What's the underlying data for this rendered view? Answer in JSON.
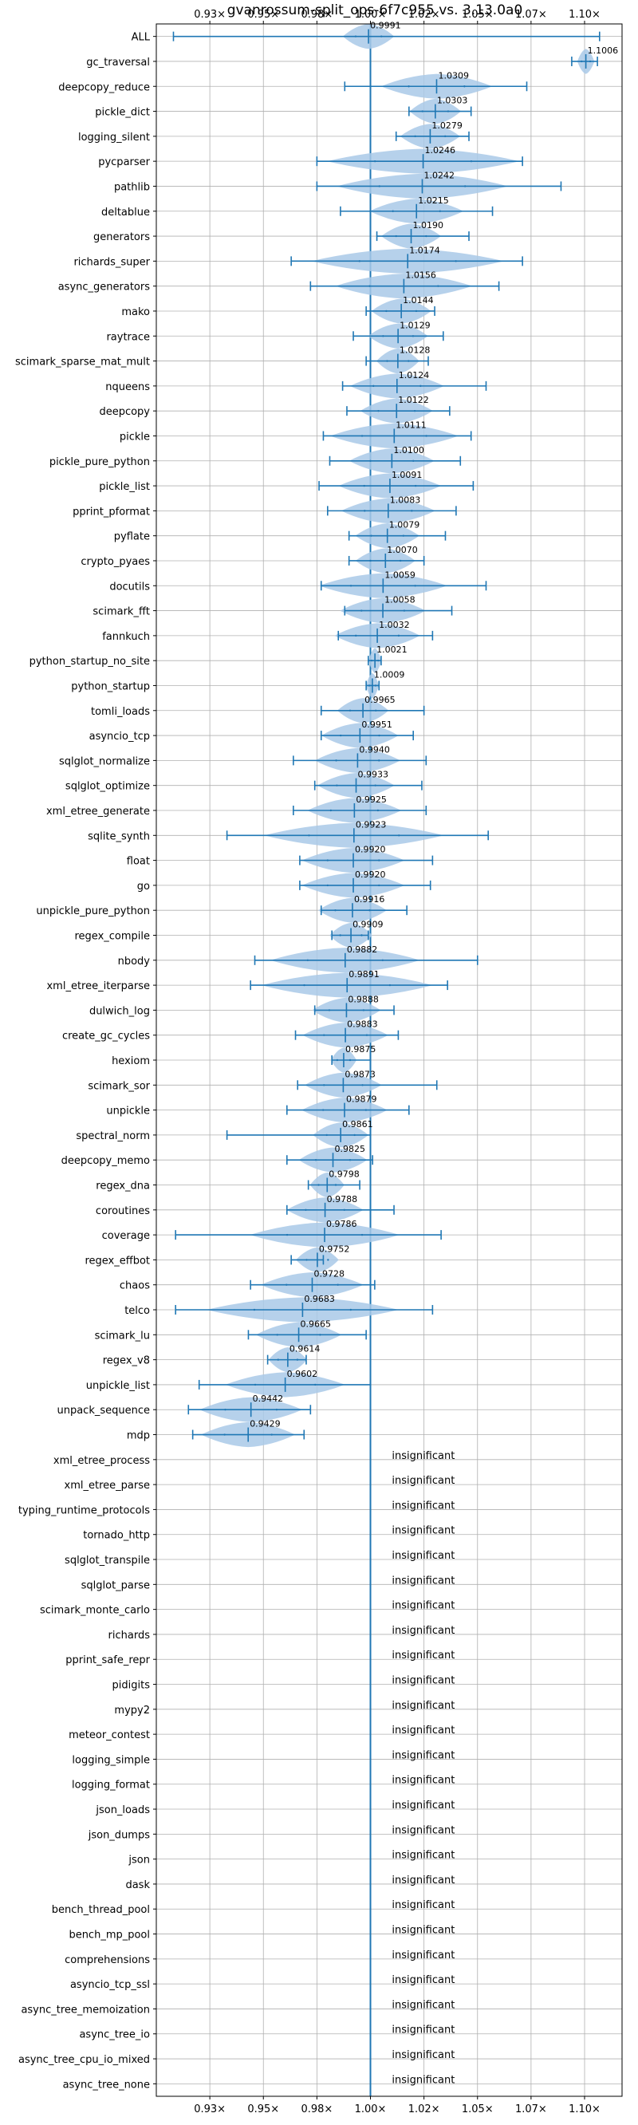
{
  "chart_data": {
    "type": "violin",
    "title": "gvanrossum-split_ops-6f7c955 vs. 3.13.0a0",
    "xlabel": "",
    "ylabel": "",
    "x_tick_values": [
      0.925,
      0.95,
      0.975,
      1.0,
      1.025,
      1.05,
      1.075,
      1.1
    ],
    "x_tick_labels": [
      "0.93×",
      "0.95×",
      "0.98×",
      "1.00×",
      "1.02×",
      "1.05×",
      "1.07×",
      "1.10×"
    ],
    "xlim": [
      0.9,
      1.1175
    ],
    "grid": true,
    "reference_line": 1.0,
    "insignificant_label": "insignificant",
    "colors": {
      "violin": "#a9c9e8",
      "line": "#1f77b4",
      "grid": "#b0b0b0",
      "axis": "#000000",
      "text": "#000000"
    },
    "benchmarks": [
      {
        "name": "ALL",
        "mean": 0.9991,
        "lo": 0.908,
        "hi": 1.107,
        "width": 0.012,
        "label": "0.9991"
      },
      {
        "name": "gc_traversal",
        "mean": 1.1006,
        "lo": 1.094,
        "hi": 1.106,
        "width": 0.004,
        "label": "1.1006"
      },
      {
        "name": "deepcopy_reduce",
        "mean": 1.0309,
        "lo": 0.988,
        "hi": 1.073,
        "width": 0.026,
        "label": "1.0309"
      },
      {
        "name": "pickle_dict",
        "mean": 1.0303,
        "lo": 1.018,
        "hi": 1.047,
        "width": 0.012,
        "label": "1.0303"
      },
      {
        "name": "logging_silent",
        "mean": 1.0279,
        "lo": 1.012,
        "hi": 1.046,
        "width": 0.014,
        "label": "1.0279"
      },
      {
        "name": "pycparser",
        "mean": 1.0246,
        "lo": 0.975,
        "hi": 1.071,
        "width": 0.045,
        "label": "1.0246"
      },
      {
        "name": "pathlib",
        "mean": 1.0242,
        "lo": 0.975,
        "hi": 1.089,
        "width": 0.04,
        "label": "1.0242"
      },
      {
        "name": "deltablue",
        "mean": 1.0215,
        "lo": 0.986,
        "hi": 1.057,
        "width": 0.022,
        "label": "1.0215"
      },
      {
        "name": "generators",
        "mean": 1.019,
        "lo": 1.003,
        "hi": 1.046,
        "width": 0.014,
        "label": "1.0190"
      },
      {
        "name": "richards_super",
        "mean": 1.0174,
        "lo": 0.963,
        "hi": 1.071,
        "width": 0.045,
        "label": "1.0174"
      },
      {
        "name": "async_generators",
        "mean": 1.0156,
        "lo": 0.972,
        "hi": 1.06,
        "width": 0.032,
        "label": "1.0156"
      },
      {
        "name": "mako",
        "mean": 1.0144,
        "lo": 0.998,
        "hi": 1.03,
        "width": 0.014,
        "label": "1.0144"
      },
      {
        "name": "raytrace",
        "mean": 1.0129,
        "lo": 0.992,
        "hi": 1.034,
        "width": 0.014,
        "label": "1.0129"
      },
      {
        "name": "scimark_sparse_mat_mult",
        "mean": 1.0128,
        "lo": 0.998,
        "hi": 1.027,
        "width": 0.01,
        "label": "1.0128"
      },
      {
        "name": "nqueens",
        "mean": 1.0124,
        "lo": 0.987,
        "hi": 1.054,
        "width": 0.022,
        "label": "1.0124"
      },
      {
        "name": "deepcopy",
        "mean": 1.0122,
        "lo": 0.989,
        "hi": 1.037,
        "width": 0.017,
        "label": "1.0122"
      },
      {
        "name": "pickle",
        "mean": 1.0111,
        "lo": 0.978,
        "hi": 1.047,
        "width": 0.03,
        "label": "1.0111"
      },
      {
        "name": "pickle_pure_python",
        "mean": 1.01,
        "lo": 0.981,
        "hi": 1.042,
        "width": 0.02,
        "label": "1.0100"
      },
      {
        "name": "pickle_list",
        "mean": 1.0091,
        "lo": 0.976,
        "hi": 1.048,
        "width": 0.024,
        "label": "1.0091"
      },
      {
        "name": "pprint_pformat",
        "mean": 1.0083,
        "lo": 0.98,
        "hi": 1.04,
        "width": 0.022,
        "label": "1.0083"
      },
      {
        "name": "pyflate",
        "mean": 1.0079,
        "lo": 0.99,
        "hi": 1.035,
        "width": 0.015,
        "label": "1.0079"
      },
      {
        "name": "crypto_pyaes",
        "mean": 1.007,
        "lo": 0.99,
        "hi": 1.025,
        "width": 0.014,
        "label": "1.0070"
      },
      {
        "name": "docutils",
        "mean": 1.0059,
        "lo": 0.977,
        "hi": 1.054,
        "width": 0.03,
        "label": "1.0059"
      },
      {
        "name": "scimark_fft",
        "mean": 1.0058,
        "lo": 0.988,
        "hi": 1.038,
        "width": 0.02,
        "label": "1.0058"
      },
      {
        "name": "fannkuch",
        "mean": 1.0032,
        "lo": 0.985,
        "hi": 1.029,
        "width": 0.02,
        "label": "1.0032"
      },
      {
        "name": "python_startup_no_site",
        "mean": 1.0021,
        "lo": 0.999,
        "hi": 1.005,
        "width": 0.003,
        "label": "1.0021"
      },
      {
        "name": "python_startup",
        "mean": 1.0009,
        "lo": 0.998,
        "hi": 1.004,
        "width": 0.003,
        "label": "1.0009"
      },
      {
        "name": "tomli_loads",
        "mean": 0.9965,
        "lo": 0.977,
        "hi": 1.025,
        "width": 0.012,
        "label": "0.9965"
      },
      {
        "name": "asyncio_tcp",
        "mean": 0.9951,
        "lo": 0.977,
        "hi": 1.02,
        "width": 0.018,
        "label": "0.9951"
      },
      {
        "name": "sqlglot_normalize",
        "mean": 0.994,
        "lo": 0.964,
        "hi": 1.026,
        "width": 0.02,
        "label": "0.9940"
      },
      {
        "name": "sqlglot_optimize",
        "mean": 0.9933,
        "lo": 0.974,
        "hi": 1.024,
        "width": 0.018,
        "label": "0.9933"
      },
      {
        "name": "xml_etree_generate",
        "mean": 0.9925,
        "lo": 0.964,
        "hi": 1.026,
        "width": 0.022,
        "label": "0.9925"
      },
      {
        "name": "sqlite_synth",
        "mean": 0.9923,
        "lo": 0.933,
        "hi": 1.055,
        "width": 0.042,
        "label": "0.9923"
      },
      {
        "name": "float",
        "mean": 0.992,
        "lo": 0.967,
        "hi": 1.029,
        "width": 0.024,
        "label": "0.9920"
      },
      {
        "name": "go",
        "mean": 0.992,
        "lo": 0.967,
        "hi": 1.028,
        "width": 0.024,
        "label": "0.9920"
      },
      {
        "name": "unpickle_pure_python",
        "mean": 0.9916,
        "lo": 0.977,
        "hi": 1.017,
        "width": 0.016,
        "label": "0.9916"
      },
      {
        "name": "regex_compile",
        "mean": 0.9909,
        "lo": 0.982,
        "hi": 0.999,
        "width": 0.01,
        "label": "0.9909"
      },
      {
        "name": "nbody",
        "mean": 0.9882,
        "lo": 0.946,
        "hi": 1.05,
        "width": 0.035,
        "label": "0.9882"
      },
      {
        "name": "xml_etree_iterparse",
        "mean": 0.9891,
        "lo": 0.944,
        "hi": 1.036,
        "width": 0.04,
        "label": "0.9891"
      },
      {
        "name": "dulwich_log",
        "mean": 0.9888,
        "lo": 0.974,
        "hi": 1.011,
        "width": 0.016,
        "label": "0.9888"
      },
      {
        "name": "create_gc_cycles",
        "mean": 0.9883,
        "lo": 0.965,
        "hi": 1.013,
        "width": 0.02,
        "label": "0.9883"
      },
      {
        "name": "hexiom",
        "mean": 0.9875,
        "lo": 0.982,
        "hi": 1.0,
        "width": 0.006,
        "label": "0.9875"
      },
      {
        "name": "scimark_sor",
        "mean": 0.9873,
        "lo": 0.966,
        "hi": 1.031,
        "width": 0.018,
        "label": "0.9873"
      },
      {
        "name": "unpickle",
        "mean": 0.9879,
        "lo": 0.961,
        "hi": 1.018,
        "width": 0.02,
        "label": "0.9879"
      },
      {
        "name": "spectral_norm",
        "mean": 0.9861,
        "lo": 0.933,
        "hi": 1.0,
        "width": 0.013,
        "label": "0.9861"
      },
      {
        "name": "deepcopy_memo",
        "mean": 0.9825,
        "lo": 0.961,
        "hi": 1.001,
        "width": 0.016,
        "label": "0.9825"
      },
      {
        "name": "regex_dna",
        "mean": 0.9798,
        "lo": 0.971,
        "hi": 0.995,
        "width": 0.008,
        "label": "0.9798"
      },
      {
        "name": "coroutines",
        "mean": 0.9788,
        "lo": 0.961,
        "hi": 1.011,
        "width": 0.018,
        "label": "0.9788"
      },
      {
        "name": "coverage",
        "mean": 0.9786,
        "lo": 0.909,
        "hi": 1.033,
        "width": 0.035,
        "label": "0.9786"
      },
      {
        "name": "regex_effbot",
        "mean": 0.9752,
        "lo": 0.963,
        "hi": 0.978,
        "width": 0.01,
        "label": "0.9752"
      },
      {
        "name": "chaos",
        "mean": 0.9728,
        "lo": 0.944,
        "hi": 1.002,
        "width": 0.024,
        "label": "0.9728"
      },
      {
        "name": "telco",
        "mean": 0.9683,
        "lo": 0.909,
        "hi": 1.029,
        "width": 0.045,
        "label": "0.9683"
      },
      {
        "name": "scimark_lu",
        "mean": 0.9665,
        "lo": 0.943,
        "hi": 0.998,
        "width": 0.02,
        "label": "0.9665"
      },
      {
        "name": "regex_v8",
        "mean": 0.9614,
        "lo": 0.952,
        "hi": 0.97,
        "width": 0.009,
        "label": "0.9614"
      },
      {
        "name": "unpickle_list",
        "mean": 0.9602,
        "lo": 0.92,
        "hi": 1.0,
        "width": 0.028,
        "label": "0.9602"
      },
      {
        "name": "unpack_sequence",
        "mean": 0.9442,
        "lo": 0.915,
        "hi": 0.972,
        "width": 0.024,
        "label": "0.9442"
      },
      {
        "name": "mdp",
        "mean": 0.9429,
        "lo": 0.917,
        "hi": 0.969,
        "width": 0.022,
        "label": "0.9429"
      },
      {
        "name": "xml_etree_process",
        "insignificant": true
      },
      {
        "name": "xml_etree_parse",
        "insignificant": true
      },
      {
        "name": "typing_runtime_protocols",
        "insignificant": true
      },
      {
        "name": "tornado_http",
        "insignificant": true
      },
      {
        "name": "sqlglot_transpile",
        "insignificant": true
      },
      {
        "name": "sqlglot_parse",
        "insignificant": true
      },
      {
        "name": "scimark_monte_carlo",
        "insignificant": true
      },
      {
        "name": "richards",
        "insignificant": true
      },
      {
        "name": "pprint_safe_repr",
        "insignificant": true
      },
      {
        "name": "pidigits",
        "insignificant": true
      },
      {
        "name": "mypy2",
        "insignificant": true
      },
      {
        "name": "meteor_contest",
        "insignificant": true
      },
      {
        "name": "logging_simple",
        "insignificant": true
      },
      {
        "name": "logging_format",
        "insignificant": true
      },
      {
        "name": "json_loads",
        "insignificant": true
      },
      {
        "name": "json_dumps",
        "insignificant": true
      },
      {
        "name": "json",
        "insignificant": true
      },
      {
        "name": "dask",
        "insignificant": true
      },
      {
        "name": "bench_thread_pool",
        "insignificant": true
      },
      {
        "name": "bench_mp_pool",
        "insignificant": true
      },
      {
        "name": "comprehensions",
        "insignificant": true
      },
      {
        "name": "asyncio_tcp_ssl",
        "insignificant": true
      },
      {
        "name": "async_tree_memoization",
        "insignificant": true
      },
      {
        "name": "async_tree_io",
        "insignificant": true
      },
      {
        "name": "async_tree_cpu_io_mixed",
        "insignificant": true
      },
      {
        "name": "async_tree_none",
        "insignificant": true
      }
    ]
  }
}
